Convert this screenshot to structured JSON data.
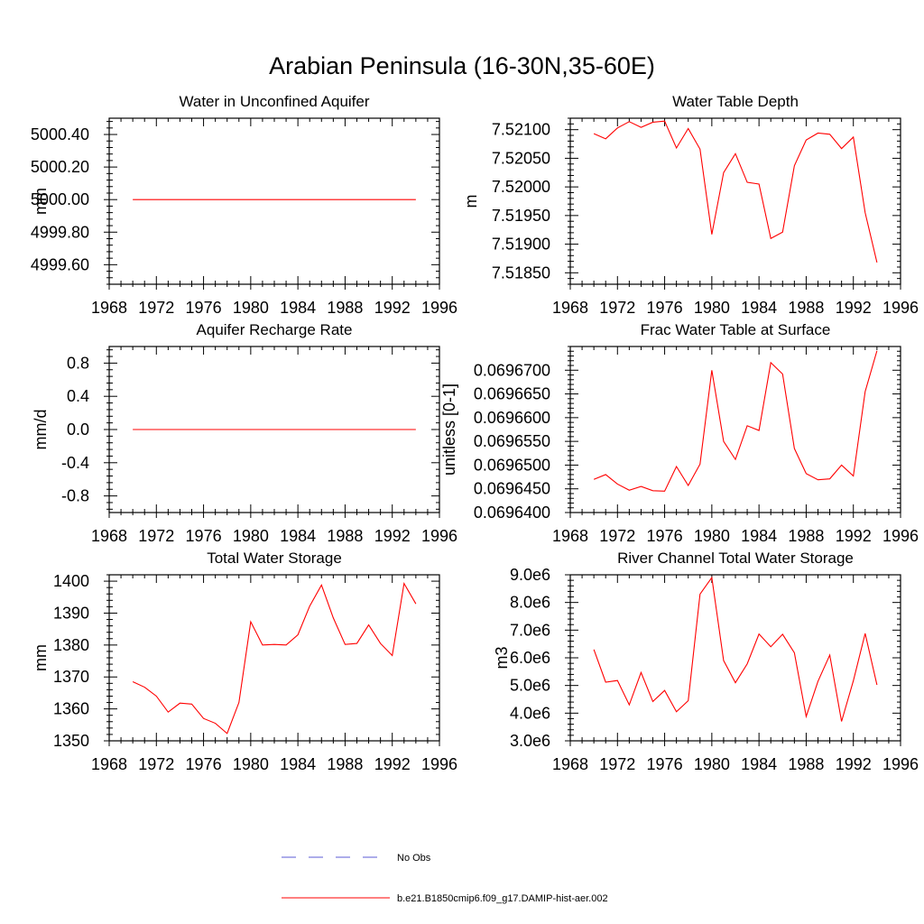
{
  "figure_title": "Arabian Peninsula (16-30N,35-60E)",
  "legend": {
    "items": [
      {
        "label": "No Obs",
        "color": "#5b5bd6",
        "style": "dashed"
      },
      {
        "label": "b.e21.B1850cmip6.f09_g17.DAMIP-hist-aer.002",
        "color": "#ff0000",
        "style": "solid"
      }
    ]
  },
  "chart_data": [
    {
      "type": "line",
      "title": "Water in Unconfined Aquifer",
      "ylabel": "mm",
      "xlim": [
        1968,
        1996
      ],
      "ylim": [
        4999.48,
        5000.5
      ],
      "xticks": [
        "1968",
        "1972",
        "1976",
        "1980",
        "1984",
        "1988",
        "1992",
        "1996"
      ],
      "yticks": [
        {
          "v": 5000.4,
          "label": "5000.40"
        },
        {
          "v": 5000.2,
          "label": "5000.20"
        },
        {
          "v": 5000.0,
          "label": "5000.00"
        },
        {
          "v": 4999.8,
          "label": "4999.80"
        },
        {
          "v": 4999.6,
          "label": "4999.60"
        }
      ],
      "x": [
        1970,
        1971,
        1972,
        1973,
        1974,
        1975,
        1976,
        1977,
        1978,
        1979,
        1980,
        1981,
        1982,
        1983,
        1984,
        1985,
        1986,
        1987,
        1988,
        1989,
        1990,
        1991,
        1992,
        1993,
        1994
      ],
      "series": [
        {
          "color": "#ff0000",
          "values": [
            5000,
            5000,
            5000,
            5000,
            5000,
            5000,
            5000,
            5000,
            5000,
            5000,
            5000,
            5000,
            5000,
            5000,
            5000,
            5000,
            5000,
            5000,
            5000,
            5000,
            5000,
            5000,
            5000,
            5000,
            5000
          ]
        }
      ]
    },
    {
      "type": "line",
      "title": "Water Table Depth",
      "ylabel": "m",
      "xlim": [
        1968,
        1996
      ],
      "ylim": [
        7.5183,
        7.5212
      ],
      "xticks": [
        "1968",
        "1972",
        "1976",
        "1980",
        "1984",
        "1988",
        "1992",
        "1996"
      ],
      "yticks": [
        {
          "v": 7.521,
          "label": "7.52100"
        },
        {
          "v": 7.5205,
          "label": "7.52050"
        },
        {
          "v": 7.52,
          "label": "7.52000"
        },
        {
          "v": 7.5195,
          "label": "7.51950"
        },
        {
          "v": 7.519,
          "label": "7.51900"
        },
        {
          "v": 7.5185,
          "label": "7.51850"
        }
      ],
      "x": [
        1970,
        1971,
        1972,
        1973,
        1974,
        1975,
        1976,
        1977,
        1978,
        1979,
        1980,
        1981,
        1982,
        1983,
        1984,
        1985,
        1986,
        1987,
        1988,
        1989,
        1990,
        1991,
        1992,
        1993,
        1994
      ],
      "series": [
        {
          "color": "#ff0000",
          "values": [
            7.52093,
            7.52084,
            7.52103,
            7.52114,
            7.52104,
            7.52113,
            7.52115,
            7.52068,
            7.52102,
            7.52066,
            7.51917,
            7.52025,
            7.52058,
            7.52008,
            7.52005,
            7.5191,
            7.51921,
            7.52037,
            7.52082,
            7.52094,
            7.52092,
            7.52067,
            7.52087,
            7.51955,
            7.51868
          ]
        }
      ]
    },
    {
      "type": "line",
      "title": "Aquifer Recharge Rate",
      "ylabel": "mm/d",
      "xlim": [
        1968,
        1996
      ],
      "ylim": [
        -1.0,
        1.0
      ],
      "xticks": [
        "1968",
        "1972",
        "1976",
        "1980",
        "1984",
        "1988",
        "1992",
        "1996"
      ],
      "yticks": [
        {
          "v": 0.8,
          "label": "0.8"
        },
        {
          "v": 0.4,
          "label": "0.4"
        },
        {
          "v": 0.0,
          "label": "0.0"
        },
        {
          "v": -0.4,
          "label": "-0.4"
        },
        {
          "v": -0.8,
          "label": "-0.8"
        }
      ],
      "x": [
        1970,
        1971,
        1972,
        1973,
        1974,
        1975,
        1976,
        1977,
        1978,
        1979,
        1980,
        1981,
        1982,
        1983,
        1984,
        1985,
        1986,
        1987,
        1988,
        1989,
        1990,
        1991,
        1992,
        1993,
        1994
      ],
      "series": [
        {
          "color": "#ff0000",
          "values": [
            0,
            0,
            0,
            0,
            0,
            0,
            0,
            0,
            0,
            0,
            0,
            0,
            0,
            0,
            0,
            0,
            0,
            0,
            0,
            0,
            0,
            0,
            0,
            0,
            0
          ]
        }
      ]
    },
    {
      "type": "line",
      "title": "Frac Water Table at Surface",
      "ylabel": "unitless [0-1]",
      "xlim": [
        1968,
        1996
      ],
      "ylim": [
        0.06964,
        0.069675
      ],
      "xticks": [
        "1968",
        "1972",
        "1976",
        "1980",
        "1984",
        "1988",
        "1992",
        "1996"
      ],
      "yticks": [
        {
          "v": 0.06967,
          "label": "0.0696700"
        },
        {
          "v": 0.069665,
          "label": "0.0696650"
        },
        {
          "v": 0.06966,
          "label": "0.0696600"
        },
        {
          "v": 0.069655,
          "label": "0.0696550"
        },
        {
          "v": 0.06965,
          "label": "0.0696500"
        },
        {
          "v": 0.069645,
          "label": "0.0696450"
        },
        {
          "v": 0.06964,
          "label": "0.0696400"
        }
      ],
      "x": [
        1970,
        1971,
        1972,
        1973,
        1974,
        1975,
        1976,
        1977,
        1978,
        1979,
        1980,
        1981,
        1982,
        1983,
        1984,
        1985,
        1986,
        1987,
        1988,
        1989,
        1990,
        1991,
        1992,
        1993,
        1994
      ],
      "series": [
        {
          "color": "#ff0000",
          "values": [
            0.069647,
            0.069648,
            0.069646,
            0.0696447,
            0.0696455,
            0.0696446,
            0.0696445,
            0.0696497,
            0.0696457,
            0.0696502,
            0.06967,
            0.069655,
            0.0696512,
            0.0696583,
            0.0696573,
            0.0696716,
            0.0696692,
            0.0696535,
            0.0696482,
            0.0696469,
            0.0696471,
            0.06965,
            0.0696477,
            0.0696655,
            0.0696741
          ]
        }
      ]
    },
    {
      "type": "line",
      "title": "Total Water Storage",
      "ylabel": "mm",
      "xlim": [
        1968,
        1996
      ],
      "ylim": [
        1350,
        1402
      ],
      "xticks": [
        "1968",
        "1972",
        "1976",
        "1980",
        "1984",
        "1988",
        "1992",
        "1996"
      ],
      "yticks": [
        {
          "v": 1400,
          "label": "1400"
        },
        {
          "v": 1390,
          "label": "1390"
        },
        {
          "v": 1380,
          "label": "1380"
        },
        {
          "v": 1370,
          "label": "1370"
        },
        {
          "v": 1360,
          "label": "1360"
        },
        {
          "v": 1350,
          "label": "1350"
        }
      ],
      "x": [
        1970,
        1971,
        1972,
        1973,
        1974,
        1975,
        1976,
        1977,
        1978,
        1979,
        1980,
        1981,
        1982,
        1983,
        1984,
        1985,
        1986,
        1987,
        1988,
        1989,
        1990,
        1991,
        1992,
        1993,
        1994
      ],
      "series": [
        {
          "color": "#ff0000",
          "values": [
            1368.5,
            1366.8,
            1364.0,
            1359.0,
            1361.8,
            1361.5,
            1357.0,
            1355.5,
            1352.3,
            1362.0,
            1387.3,
            1380.0,
            1380.2,
            1380.0,
            1383.2,
            1392.2,
            1398.8,
            1388.5,
            1380.2,
            1380.5,
            1386.3,
            1380.5,
            1376.7,
            1399.3,
            1392.9
          ]
        }
      ]
    },
    {
      "type": "line",
      "title": "River Channel Total Water Storage",
      "ylabel": "m3",
      "xlim": [
        1968,
        1996
      ],
      "ylim": [
        3000000.0,
        9000000.0
      ],
      "xticks": [
        "1968",
        "1972",
        "1976",
        "1980",
        "1984",
        "1988",
        "1992",
        "1996"
      ],
      "yticks": [
        {
          "v": 9000000.0,
          "label": "9.0e6"
        },
        {
          "v": 8000000.0,
          "label": "8.0e6"
        },
        {
          "v": 7000000.0,
          "label": "7.0e6"
        },
        {
          "v": 6000000.0,
          "label": "6.0e6"
        },
        {
          "v": 5000000.0,
          "label": "5.0e6"
        },
        {
          "v": 4000000.0,
          "label": "4.0e6"
        },
        {
          "v": 3000000.0,
          "label": "3.0e6"
        }
      ],
      "x": [
        1970,
        1971,
        1972,
        1973,
        1974,
        1975,
        1976,
        1977,
        1978,
        1979,
        1980,
        1981,
        1982,
        1983,
        1984,
        1985,
        1986,
        1987,
        1988,
        1989,
        1990,
        1991,
        1992,
        1993,
        1994
      ],
      "series": [
        {
          "color": "#ff0000",
          "values": [
            6300000.0,
            5120000.0,
            5180000.0,
            4300000.0,
            5470000.0,
            4420000.0,
            4820000.0,
            4050000.0,
            4450000.0,
            8300000.0,
            8900000.0,
            5900000.0,
            5100000.0,
            5780000.0,
            6860000.0,
            6400000.0,
            6850000.0,
            6180000.0,
            3880000.0,
            5150000.0,
            6100000.0,
            3700000.0,
            5170000.0,
            6880000.0,
            5020000.0
          ]
        }
      ]
    }
  ]
}
